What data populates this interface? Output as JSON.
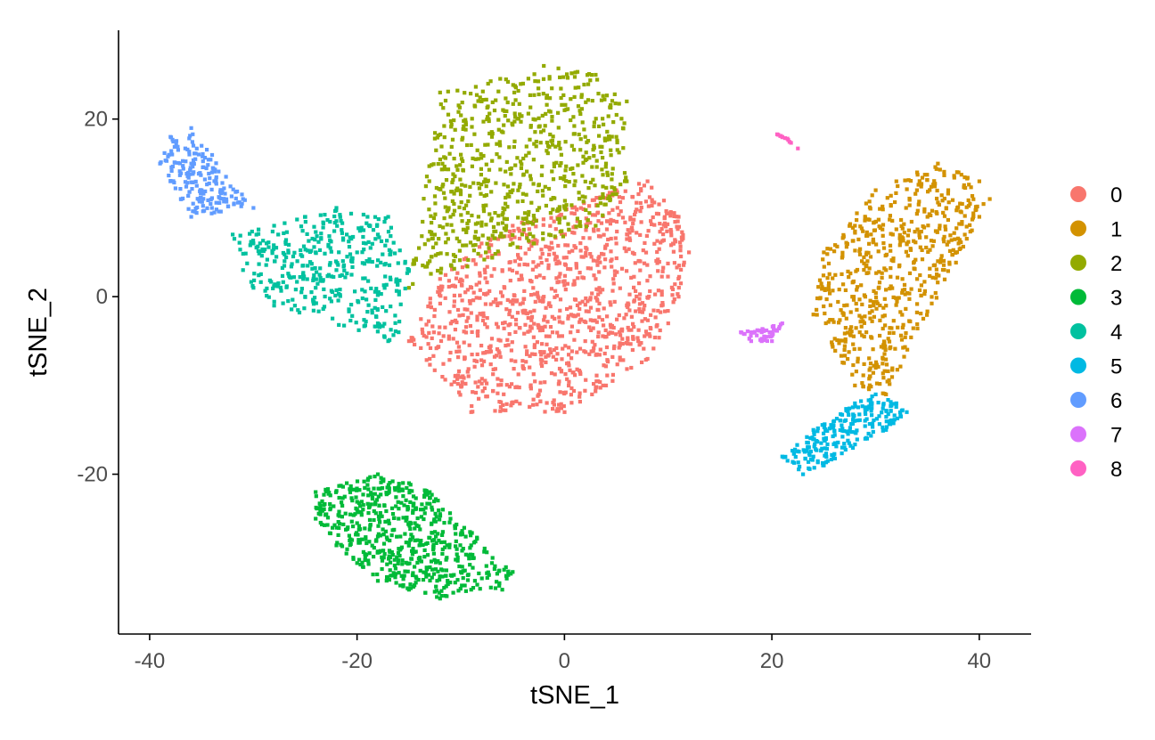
{
  "chart_data": {
    "type": "scatter",
    "title": "",
    "xlabel": "tSNE_1",
    "ylabel": "tSNE_2",
    "xlim": [
      -43,
      45
    ],
    "ylim": [
      -38,
      30
    ],
    "xticks": [
      -40,
      -20,
      0,
      20,
      40
    ],
    "yticks": [
      -20,
      0,
      20
    ],
    "xtick_labels": [
      "-40",
      "-20",
      "0",
      "20",
      "40"
    ],
    "ytick_labels": [
      "-20",
      "0",
      "20"
    ],
    "grid": false,
    "legend_position": "right",
    "series": [
      {
        "name": "0",
        "color": "#F8766D",
        "approx_points": 1100,
        "center": [
          1,
          -2
        ],
        "points": [
          [
            -15,
            -5
          ],
          [
            -12,
            2
          ],
          [
            -8,
            6
          ],
          [
            -5,
            8
          ],
          [
            0,
            10
          ],
          [
            5,
            12
          ],
          [
            8,
            13
          ],
          [
            11,
            9
          ],
          [
            12,
            5
          ],
          [
            11,
            0
          ],
          [
            10,
            -3
          ],
          [
            8,
            -7
          ],
          [
            4,
            -10
          ],
          [
            0,
            -13
          ],
          [
            -5,
            -12
          ],
          [
            -9,
            -13
          ],
          [
            -10,
            -10
          ],
          [
            -13,
            -7
          ],
          [
            -6,
            3
          ],
          [
            -2,
            0
          ],
          [
            3,
            2
          ],
          [
            6,
            -1
          ],
          [
            -1,
            -6
          ],
          [
            -4,
            -8
          ],
          [
            2,
            -5
          ],
          [
            -8,
            -2
          ],
          [
            5,
            6
          ]
        ]
      },
      {
        "name": "1",
        "color": "#D39200",
        "approx_points": 600,
        "center": [
          32,
          3
        ],
        "points": [
          [
            25,
            5
          ],
          [
            24,
            -2
          ],
          [
            27,
            -6
          ],
          [
            28,
            -10
          ],
          [
            30,
            -8
          ],
          [
            31,
            -11
          ],
          [
            29,
            0
          ],
          [
            31,
            3
          ],
          [
            33,
            6
          ],
          [
            35,
            9
          ],
          [
            37,
            12
          ],
          [
            38,
            14
          ],
          [
            40,
            13
          ],
          [
            41,
            11
          ],
          [
            40,
            9
          ],
          [
            38,
            6
          ],
          [
            36,
            4
          ],
          [
            34,
            2
          ],
          [
            31,
            -1
          ],
          [
            28,
            8
          ],
          [
            30,
            12
          ],
          [
            32,
            13
          ],
          [
            34,
            14
          ],
          [
            36,
            15
          ]
        ]
      },
      {
        "name": "2",
        "color": "#93AA00",
        "approx_points": 700,
        "center": [
          -3,
          15
        ],
        "points": [
          [
            -12,
            23
          ],
          [
            -8,
            22
          ],
          [
            -4,
            24
          ],
          [
            -2,
            26
          ],
          [
            3,
            25
          ],
          [
            6,
            22
          ],
          [
            5,
            18
          ],
          [
            6,
            13
          ],
          [
            3,
            8
          ],
          [
            0,
            10
          ],
          [
            -3,
            6
          ],
          [
            -5,
            6
          ],
          [
            -8,
            8
          ],
          [
            -11,
            9
          ],
          [
            -13,
            4
          ],
          [
            -15,
            1
          ],
          [
            -10,
            16
          ],
          [
            -7,
            18
          ],
          [
            -5,
            12
          ],
          [
            -1,
            15
          ],
          [
            2,
            18
          ],
          [
            -3,
            20
          ],
          [
            0,
            21
          ],
          [
            4,
            15
          ]
        ]
      },
      {
        "name": "3",
        "color": "#00BA38",
        "approx_points": 600,
        "center": [
          -15,
          -28
        ],
        "points": [
          [
            -24,
            -22
          ],
          [
            -21,
            -21
          ],
          [
            -18,
            -20
          ],
          [
            -15,
            -21
          ],
          [
            -13,
            -22
          ],
          [
            -11,
            -25
          ],
          [
            -9,
            -28
          ],
          [
            -7,
            -30
          ],
          [
            -5,
            -31
          ],
          [
            -6,
            -33
          ],
          [
            -9,
            -33
          ],
          [
            -12,
            -34
          ],
          [
            -15,
            -33
          ],
          [
            -18,
            -32
          ],
          [
            -20,
            -30
          ],
          [
            -22,
            -28
          ],
          [
            -24,
            -25
          ],
          [
            -16,
            -25
          ],
          [
            -14,
            -28
          ],
          [
            -12,
            -30
          ],
          [
            -18,
            -27
          ],
          [
            -20,
            -24
          ],
          [
            -10,
            -31
          ]
        ]
      },
      {
        "name": "4",
        "color": "#00C19F",
        "approx_points": 400,
        "center": [
          -25,
          4
        ],
        "points": [
          [
            -32,
            7
          ],
          [
            -31,
            3
          ],
          [
            -30,
            1
          ],
          [
            -28,
            -1
          ],
          [
            -26,
            -1
          ],
          [
            -24,
            1
          ],
          [
            -22,
            3
          ],
          [
            -20,
            5
          ],
          [
            -18,
            7
          ],
          [
            -17,
            9
          ],
          [
            -19,
            9
          ],
          [
            -22,
            10
          ],
          [
            -25,
            9
          ],
          [
            -28,
            8
          ],
          [
            -30,
            6
          ],
          [
            -18,
            -3
          ],
          [
            -17,
            -5
          ],
          [
            -16,
            -4
          ],
          [
            -15,
            3
          ],
          [
            -24,
            5
          ],
          [
            -27,
            4
          ],
          [
            -21,
            7
          ]
        ]
      },
      {
        "name": "5",
        "color": "#00B9E3",
        "approx_points": 230,
        "center": [
          28,
          -15
        ],
        "points": [
          [
            21,
            -18
          ],
          [
            23,
            -20
          ],
          [
            24,
            -18
          ],
          [
            25,
            -16
          ],
          [
            27,
            -14
          ],
          [
            28,
            -12
          ],
          [
            30,
            -11
          ],
          [
            32,
            -12
          ],
          [
            33,
            -13
          ],
          [
            31,
            -15
          ],
          [
            29,
            -16
          ],
          [
            27,
            -17
          ],
          [
            25,
            -19
          ],
          [
            26,
            -14
          ],
          [
            29,
            -13
          ],
          [
            24,
            -15
          ]
        ]
      },
      {
        "name": "6",
        "color": "#619CFF",
        "approx_points": 190,
        "center": [
          -36,
          14
        ],
        "points": [
          [
            -39,
            15
          ],
          [
            -38,
            18
          ],
          [
            -36,
            19
          ],
          [
            -35,
            17
          ],
          [
            -34,
            14
          ],
          [
            -33,
            12
          ],
          [
            -31,
            11
          ],
          [
            -30,
            10
          ],
          [
            -34,
            10
          ],
          [
            -36,
            9
          ],
          [
            -37,
            11
          ],
          [
            -38,
            13
          ],
          [
            -36,
            15
          ],
          [
            -35,
            12
          ]
        ]
      },
      {
        "name": "7",
        "color": "#DB72FB",
        "approx_points": 50,
        "center": [
          19,
          -4
        ],
        "points": [
          [
            17,
            -4
          ],
          [
            18,
            -5
          ],
          [
            19,
            -4
          ],
          [
            20,
            -4
          ],
          [
            21,
            -3
          ],
          [
            19,
            -5
          ],
          [
            18,
            -4
          ],
          [
            20,
            -5
          ]
        ]
      },
      {
        "name": "8",
        "color": "#FF61C3",
        "approx_points": 12,
        "center": [
          21,
          18
        ],
        "points": [
          [
            20.5,
            18.3
          ],
          [
            21,
            18
          ],
          [
            21.5,
            17.8
          ],
          [
            22.5,
            16.7
          ],
          [
            20.8,
            18.1
          ]
        ]
      }
    ]
  }
}
